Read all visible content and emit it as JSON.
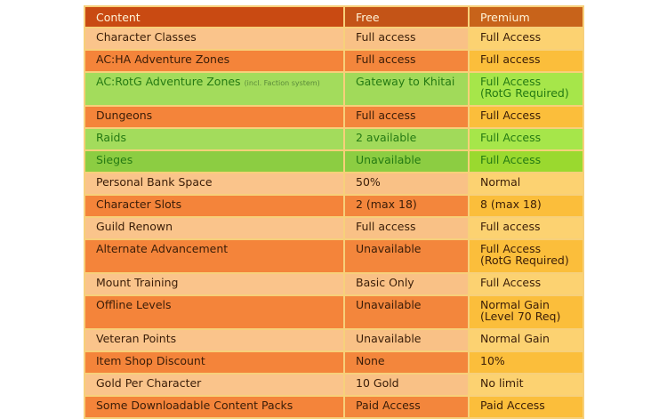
{
  "table": {
    "headers": [
      "Content",
      "Free",
      "Premium"
    ],
    "rows": [
      {
        "content": "Character Classes",
        "note": "",
        "free": "Full access",
        "premium": "Full Access"
      },
      {
        "content": "AC:HA Adventure Zones",
        "note": "",
        "free": "Full access",
        "premium": "Full access"
      },
      {
        "content": "AC:RotG Adventure Zones",
        "note": "(incl. Faction system)",
        "free": "Gateway to Khitai",
        "premium": "Full Access\n(RotG Required)"
      },
      {
        "content": "Dungeons",
        "note": "",
        "free": "Full access",
        "premium": "Full Access"
      },
      {
        "content": "Raids",
        "note": "",
        "free": "2 available",
        "premium": "Full Access"
      },
      {
        "content": "Sieges",
        "note": "",
        "free": "Unavailable",
        "premium": "Full Access"
      },
      {
        "content": "Personal Bank Space",
        "note": "",
        "free": "50%",
        "premium": "Normal"
      },
      {
        "content": "Character Slots",
        "note": "",
        "free": "2 (max 18)",
        "premium": "8 (max 18)"
      },
      {
        "content": "Guild Renown",
        "note": "",
        "free": "Full access",
        "premium": "Full access"
      },
      {
        "content": "Alternate Advancement",
        "note": "",
        "free": "Unavailable",
        "premium": "Full Access\n(RotG Required)"
      },
      {
        "content": "Mount Training",
        "note": "",
        "free": "Basic Only",
        "premium": "Full Access"
      },
      {
        "content": "Offline Levels",
        "note": "",
        "free": "Unavailable",
        "premium": "Normal Gain\n(Level 70 Req)"
      },
      {
        "content": "Veteran Points",
        "note": "",
        "free": "Unavailable",
        "premium": "Normal Gain"
      },
      {
        "content": "Item Shop Discount",
        "note": "",
        "free": "None",
        "premium": "10%"
      },
      {
        "content": "Gold Per Character",
        "note": "",
        "free": "10 Gold",
        "premium": "No limit"
      },
      {
        "content": "Some Downloadable Content Packs",
        "note": "",
        "free": "Paid Access",
        "premium": "Paid Access"
      }
    ]
  }
}
